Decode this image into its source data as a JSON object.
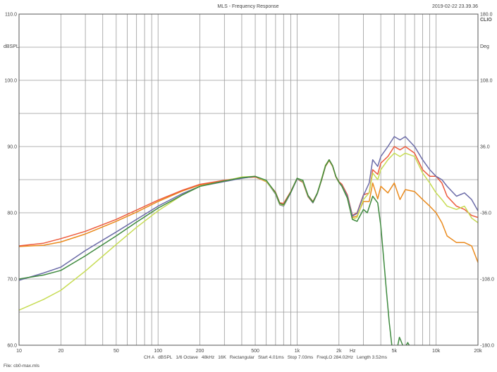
{
  "header": {
    "title": "MLS - Frequency Response",
    "timestamp": "2019-02-22 23.39.36",
    "logo": "CLIO"
  },
  "footer": {
    "settings": [
      "CH A",
      "dBSPL",
      "1/6 Octave",
      "48kHz",
      "16K",
      "Rectangular",
      "Start 4.01ms",
      "Stop 7.03ms",
      "FreqLO 284.02Hz",
      "Length 3.52ms"
    ],
    "file": "File: cb0-max.mls"
  },
  "colors": {
    "grid": "#9a9a9a",
    "frame": "#555555",
    "background": "#ffffff"
  },
  "chart_data": {
    "type": "line",
    "title": "MLS - Frequency Response",
    "xlabel": "Hz",
    "ylabel": "dBSPL",
    "y2label": "Deg",
    "x_scale": "log",
    "xlim": [
      10,
      20000
    ],
    "ylim": [
      60,
      110
    ],
    "y2lim": [
      -180,
      180
    ],
    "grid": true,
    "x_tick_labels": [
      {
        "value": 10,
        "label": "10"
      },
      {
        "value": 20,
        "label": "20"
      },
      {
        "value": 50,
        "label": "50"
      },
      {
        "value": 100,
        "label": "100"
      },
      {
        "value": 200,
        "label": "200"
      },
      {
        "value": 500,
        "label": "500"
      },
      {
        "value": 1000,
        "label": "1k"
      },
      {
        "value": 2000,
        "label": "2k"
      },
      {
        "value": 5000,
        "label": "5k"
      },
      {
        "value": 10000,
        "label": "10k"
      },
      {
        "value": 20000,
        "label": "20k"
      }
    ],
    "y_tick_labels": [
      {
        "value": 60,
        "label": "60.0"
      },
      {
        "value": 70,
        "label": "70.0"
      },
      {
        "value": 80,
        "label": "80.0"
      },
      {
        "value": 90,
        "label": "90.0"
      },
      {
        "value": 100,
        "label": "100.0"
      },
      {
        "value": 110,
        "label": "110.0"
      }
    ],
    "y2_tick_labels": [
      {
        "value": -180,
        "label": "-180.0"
      },
      {
        "value": -108,
        "label": "-108.0"
      },
      {
        "value": -36,
        "label": "-36.0"
      },
      {
        "value": 36,
        "label": "36.0"
      },
      {
        "value": 108,
        "label": "108.0"
      },
      {
        "value": 180,
        "label": "180.0"
      }
    ],
    "series": [
      {
        "color": "#ea8a1c",
        "points": [
          [
            10,
            74.9
          ],
          [
            15,
            75.1
          ],
          [
            20,
            75.6
          ],
          [
            30,
            76.8
          ],
          [
            50,
            78.7
          ],
          [
            70,
            80.1
          ],
          [
            100,
            81.7
          ],
          [
            150,
            83.3
          ],
          [
            200,
            84.2
          ],
          [
            300,
            84.8
          ],
          [
            400,
            85.3
          ],
          [
            500,
            85.4
          ],
          [
            600,
            84.7
          ],
          [
            700,
            83.0
          ],
          [
            750,
            81.3
          ],
          [
            800,
            81.2
          ],
          [
            900,
            83.1
          ],
          [
            1000,
            85.1
          ],
          [
            1100,
            84.6
          ],
          [
            1200,
            82.4
          ],
          [
            1300,
            81.5
          ],
          [
            1400,
            82.9
          ],
          [
            1500,
            84.9
          ],
          [
            1600,
            87.0
          ],
          [
            1700,
            87.9
          ],
          [
            1800,
            87.0
          ],
          [
            1900,
            85.4
          ],
          [
            2000,
            84.6
          ],
          [
            2100,
            84.1
          ],
          [
            2300,
            82.4
          ],
          [
            2500,
            79.3
          ],
          [
            2700,
            79.5
          ],
          [
            3000,
            81.7
          ],
          [
            3300,
            81.7
          ],
          [
            3500,
            84.5
          ],
          [
            3800,
            82.1
          ],
          [
            4000,
            84.0
          ],
          [
            4500,
            83.0
          ],
          [
            5000,
            84.5
          ],
          [
            5500,
            82.0
          ],
          [
            6000,
            83.5
          ],
          [
            7000,
            83.2
          ],
          [
            8000,
            82.0
          ],
          [
            9000,
            81.0
          ],
          [
            10000,
            80.0
          ],
          [
            11000,
            78.5
          ],
          [
            12000,
            76.5
          ],
          [
            14000,
            75.5
          ],
          [
            16000,
            75.5
          ],
          [
            18000,
            75.0
          ],
          [
            20000,
            72.5
          ]
        ]
      },
      {
        "color": "#ed5a3c",
        "points": [
          [
            10,
            75.0
          ],
          [
            15,
            75.4
          ],
          [
            20,
            76.1
          ],
          [
            30,
            77.2
          ],
          [
            50,
            79.0
          ],
          [
            70,
            80.4
          ],
          [
            100,
            81.9
          ],
          [
            150,
            83.4
          ],
          [
            200,
            84.3
          ],
          [
            300,
            84.9
          ],
          [
            400,
            85.3
          ],
          [
            500,
            85.4
          ],
          [
            600,
            84.8
          ],
          [
            700,
            83.1
          ],
          [
            750,
            81.5
          ],
          [
            800,
            81.4
          ],
          [
            900,
            83.2
          ],
          [
            1000,
            85.2
          ],
          [
            1100,
            84.8
          ],
          [
            1200,
            82.6
          ],
          [
            1300,
            81.7
          ],
          [
            1400,
            83.0
          ],
          [
            1500,
            85.0
          ],
          [
            1600,
            87.1
          ],
          [
            1700,
            88.0
          ],
          [
            1800,
            87.1
          ],
          [
            1900,
            85.5
          ],
          [
            2000,
            84.7
          ],
          [
            2100,
            84.3
          ],
          [
            2300,
            82.7
          ],
          [
            2500,
            79.6
          ],
          [
            2700,
            80.0
          ],
          [
            3000,
            82.7
          ],
          [
            3300,
            83.0
          ],
          [
            3500,
            86.5
          ],
          [
            3800,
            85.8
          ],
          [
            4000,
            87.5
          ],
          [
            4500,
            88.5
          ],
          [
            5000,
            90.0
          ],
          [
            5500,
            89.5
          ],
          [
            6000,
            90.0
          ],
          [
            7000,
            89.0
          ],
          [
            8000,
            86.5
          ],
          [
            9000,
            85.5
          ],
          [
            10000,
            85.5
          ],
          [
            11000,
            84.5
          ],
          [
            12000,
            82.5
          ],
          [
            14000,
            81.0
          ],
          [
            16000,
            80.5
          ],
          [
            18000,
            79.6
          ],
          [
            20000,
            79.3
          ]
        ]
      },
      {
        "color": "#6c6ca8",
        "points": [
          [
            10,
            69.8
          ],
          [
            15,
            70.9
          ],
          [
            20,
            71.8
          ],
          [
            30,
            74.3
          ],
          [
            50,
            77.1
          ],
          [
            70,
            79.0
          ],
          [
            100,
            81.0
          ],
          [
            150,
            82.9
          ],
          [
            200,
            84.0
          ],
          [
            300,
            84.7
          ],
          [
            400,
            85.2
          ],
          [
            500,
            85.5
          ],
          [
            600,
            84.8
          ],
          [
            700,
            82.8
          ],
          [
            750,
            81.2
          ],
          [
            800,
            81.0
          ],
          [
            900,
            83.0
          ],
          [
            1000,
            85.1
          ],
          [
            1100,
            84.7
          ],
          [
            1200,
            82.5
          ],
          [
            1300,
            81.5
          ],
          [
            1400,
            82.9
          ],
          [
            1500,
            85.0
          ],
          [
            1600,
            87.1
          ],
          [
            1700,
            88.0
          ],
          [
            1800,
            87.1
          ],
          [
            1900,
            85.5
          ],
          [
            2000,
            84.6
          ],
          [
            2100,
            84.1
          ],
          [
            2300,
            82.5
          ],
          [
            2500,
            79.5
          ],
          [
            2700,
            79.9
          ],
          [
            3000,
            82.6
          ],
          [
            3300,
            84.5
          ],
          [
            3500,
            88.0
          ],
          [
            3800,
            87.0
          ],
          [
            4000,
            88.5
          ],
          [
            4500,
            90.0
          ],
          [
            5000,
            91.5
          ],
          [
            5500,
            91.0
          ],
          [
            6000,
            91.5
          ],
          [
            7000,
            90.0
          ],
          [
            8000,
            88.0
          ],
          [
            9000,
            86.5
          ],
          [
            10000,
            85.5
          ],
          [
            11000,
            85.0
          ],
          [
            12000,
            84.0
          ],
          [
            14000,
            82.5
          ],
          [
            16000,
            83.0
          ],
          [
            18000,
            82.0
          ],
          [
            20000,
            80.3
          ]
        ]
      },
      {
        "color": "#c7dc54",
        "points": [
          [
            10,
            65.3
          ],
          [
            15,
            66.9
          ],
          [
            20,
            68.3
          ],
          [
            30,
            71.2
          ],
          [
            50,
            75.2
          ],
          [
            70,
            77.8
          ],
          [
            100,
            80.3
          ],
          [
            150,
            82.7
          ],
          [
            200,
            84.0
          ],
          [
            300,
            84.8
          ],
          [
            400,
            85.4
          ],
          [
            500,
            85.5
          ],
          [
            600,
            84.8
          ],
          [
            700,
            82.9
          ],
          [
            750,
            81.3
          ],
          [
            800,
            81.1
          ],
          [
            900,
            83.1
          ],
          [
            1000,
            85.2
          ],
          [
            1100,
            84.8
          ],
          [
            1200,
            82.6
          ],
          [
            1300,
            81.6
          ],
          [
            1400,
            83.0
          ],
          [
            1500,
            85.1
          ],
          [
            1600,
            87.2
          ],
          [
            1700,
            88.0
          ],
          [
            1800,
            87.1
          ],
          [
            1900,
            85.5
          ],
          [
            2000,
            84.6
          ],
          [
            2100,
            84.0
          ],
          [
            2300,
            82.2
          ],
          [
            2500,
            79.0
          ],
          [
            2700,
            79.3
          ],
          [
            3000,
            82.0
          ],
          [
            3300,
            83.0
          ],
          [
            3500,
            86.0
          ],
          [
            3800,
            85.0
          ],
          [
            4000,
            86.5
          ],
          [
            4500,
            88.0
          ],
          [
            5000,
            89.0
          ],
          [
            5500,
            88.5
          ],
          [
            6000,
            89.0
          ],
          [
            7000,
            88.5
          ],
          [
            8000,
            86.0
          ],
          [
            9000,
            84.5
          ],
          [
            10000,
            83.0
          ],
          [
            11000,
            82.0
          ],
          [
            12000,
            81.0
          ],
          [
            14000,
            80.5
          ],
          [
            16000,
            81.0
          ],
          [
            18000,
            79.2
          ],
          [
            20000,
            78.5
          ]
        ]
      },
      {
        "color": "#3f8a3f",
        "points": [
          [
            10,
            70.0
          ],
          [
            15,
            70.6
          ],
          [
            20,
            71.3
          ],
          [
            30,
            73.5
          ],
          [
            50,
            76.5
          ],
          [
            70,
            78.6
          ],
          [
            100,
            80.7
          ],
          [
            150,
            82.7
          ],
          [
            200,
            84.0
          ],
          [
            300,
            84.8
          ],
          [
            400,
            85.3
          ],
          [
            500,
            85.5
          ],
          [
            600,
            84.9
          ],
          [
            700,
            83.0
          ],
          [
            750,
            81.4
          ],
          [
            800,
            81.2
          ],
          [
            900,
            83.1
          ],
          [
            1000,
            85.2
          ],
          [
            1100,
            84.9
          ],
          [
            1200,
            82.6
          ],
          [
            1300,
            81.6
          ],
          [
            1400,
            83.0
          ],
          [
            1500,
            85.0
          ],
          [
            1600,
            87.1
          ],
          [
            1700,
            88.0
          ],
          [
            1800,
            87.1
          ],
          [
            1900,
            85.5
          ],
          [
            2000,
            84.6
          ],
          [
            2100,
            84.0
          ],
          [
            2300,
            82.2
          ],
          [
            2500,
            79.0
          ],
          [
            2700,
            78.7
          ],
          [
            3000,
            80.5
          ],
          [
            3200,
            80.0
          ],
          [
            3500,
            82.5
          ],
          [
            3800,
            81.5
          ],
          [
            4000,
            78.0
          ],
          [
            4200,
            73.0
          ],
          [
            4400,
            68.0
          ],
          [
            4600,
            63.5
          ],
          [
            4800,
            60.0
          ]
        ]
      },
      {
        "color": "#3f8a3f",
        "points": [
          [
            5300,
            60.0
          ],
          [
            5450,
            61.2
          ],
          [
            5600,
            60.6
          ],
          [
            5750,
            60.0
          ]
        ]
      },
      {
        "color": "#3f8a3f",
        "points": [
          [
            6100,
            60.0
          ],
          [
            6250,
            60.4
          ],
          [
            6400,
            60.0
          ]
        ]
      }
    ]
  }
}
